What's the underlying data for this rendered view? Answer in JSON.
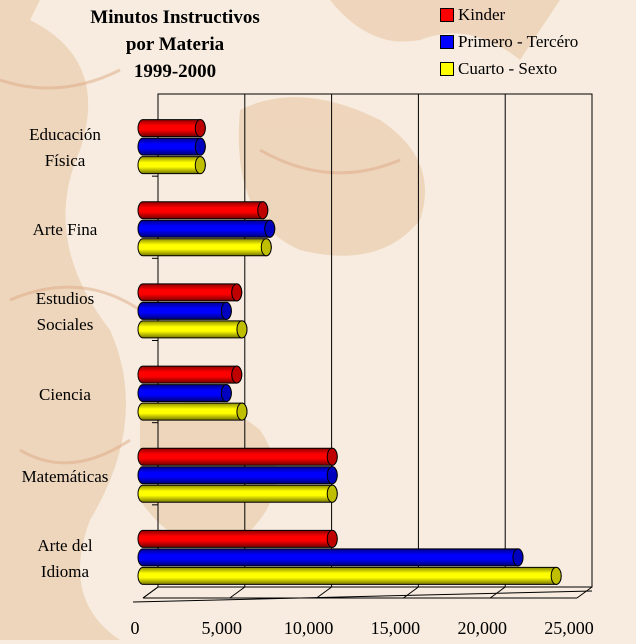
{
  "chart_data": {
    "type": "bar",
    "orientation": "horizontal",
    "title_lines": [
      "Minutos Instructivos",
      "por Materia",
      "1999-2000"
    ],
    "categories": [
      "Educación Física",
      "Arte Fina",
      "Estudios Sociales",
      "Ciencia",
      "Matemáticas",
      "Arte del Idioma"
    ],
    "category_label_lines": [
      [
        "Educación",
        "Física"
      ],
      [
        "Arte Fina"
      ],
      [
        "Estudios",
        "Sociales"
      ],
      [
        "Ciencia"
      ],
      [
        "Matemáticas"
      ],
      [
        "Arte del",
        "Idioma"
      ]
    ],
    "series": [
      {
        "name": "Kinder",
        "color": "#ff0000",
        "values": [
          3300,
          6900,
          5400,
          5400,
          10900,
          10900
        ]
      },
      {
        "name": "Primero - Tercéro",
        "color": "#0000ff",
        "values": [
          3300,
          7300,
          4800,
          4800,
          10900,
          21600
        ]
      },
      {
        "name": "Cuarto - Sexto",
        "color": "#ffff00",
        "values": [
          3300,
          7100,
          5700,
          5700,
          10900,
          23800
        ]
      }
    ],
    "xlim": [
      0,
      25000
    ],
    "tick_labels": [
      "0",
      "5,000",
      "10,000",
      "15,000",
      "20,000",
      "25,000"
    ],
    "tick_values": [
      0,
      5000,
      10000,
      15000,
      20000,
      25000
    ],
    "grid": true,
    "legend_position": "top-right"
  }
}
